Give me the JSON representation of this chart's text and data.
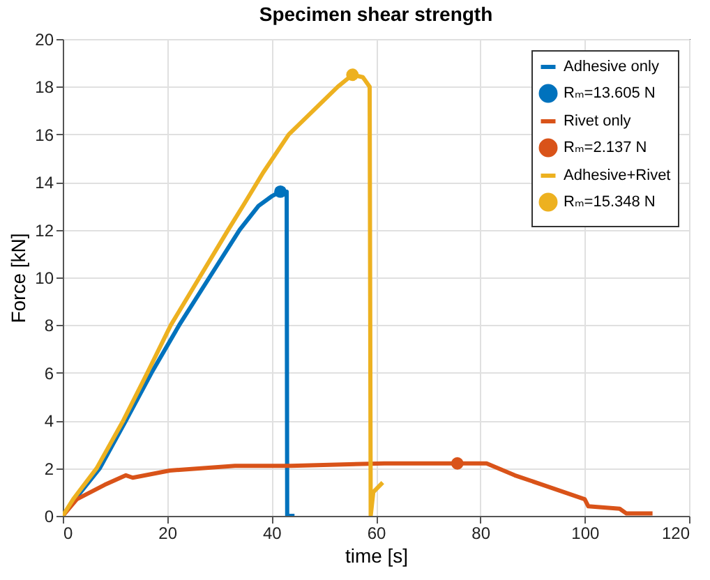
{
  "chart_data": {
    "type": "line",
    "title": "Specimen shear strength",
    "xlabel": "time [s]",
    "ylabel": "Force [kN]",
    "xlim": [
      0,
      120
    ],
    "xticks": [
      0,
      20,
      40,
      60,
      80,
      100,
      120
    ],
    "ylim": [
      0,
      20
    ],
    "yticks": [
      0,
      2,
      4,
      6,
      8,
      10,
      12,
      14,
      16,
      18,
      20
    ],
    "grid": true,
    "legend": "top right",
    "series": [
      {
        "name": "Adhesive only",
        "color": "#0072bd",
        "x": [
          0,
          2,
          7.1,
          12.1,
          17,
          22.3,
          28.1,
          33.9,
          37.5,
          40,
          41.7,
          42.9,
          43.0,
          44.4
        ],
        "values": [
          0,
          0.6,
          2,
          4,
          6,
          8,
          10,
          12,
          13,
          13.4,
          13.6,
          13.6,
          0,
          0
        ]
      },
      {
        "name": "Rₘ=13.605 N",
        "type": "scatter",
        "marker": "circle",
        "color": "#0072bd",
        "x": [
          41.7
        ],
        "values": [
          13.6
        ]
      },
      {
        "name": "Rivet only",
        "color": "#d95319",
        "x": [
          0,
          2.7,
          8,
          12.1,
          13.4,
          20.5,
          33,
          43.7,
          61.6,
          75.6,
          81.2,
          86.6,
          92,
          100,
          100.7,
          106.7,
          108,
          113
        ],
        "values": [
          0,
          0.7,
          1.3,
          1.7,
          1.6,
          1.9,
          2.1,
          2.1,
          2.2,
          2.2,
          2.2,
          1.7,
          1.3,
          0.7,
          0.4,
          0.3,
          0.1,
          0.1
        ]
      },
      {
        "name": "Rₘ=2.137 N",
        "type": "scatter",
        "marker": "circle",
        "color": "#d95319",
        "x": [
          75.6
        ],
        "values": [
          2.2
        ]
      },
      {
        "name": "Adhesive+Rivet",
        "color": "#edb120",
        "x": [
          0,
          2,
          6.5,
          11.6,
          16.2,
          20.7,
          26.2,
          31.7,
          34.8,
          38.4,
          43.3,
          48,
          52.7,
          55.5,
          57.5,
          58.8,
          59,
          59.5,
          61.3
        ],
        "values": [
          0,
          0.7,
          2,
          4,
          6,
          8,
          10,
          12,
          13.1,
          14.4,
          16,
          17,
          18,
          18.5,
          18.4,
          18,
          0,
          1,
          1.4
        ]
      },
      {
        "name": "Rₘ=15.348 N",
        "type": "scatter",
        "marker": "circle",
        "color": "#edb120",
        "x": [
          55.5
        ],
        "values": [
          18.5
        ]
      }
    ]
  }
}
